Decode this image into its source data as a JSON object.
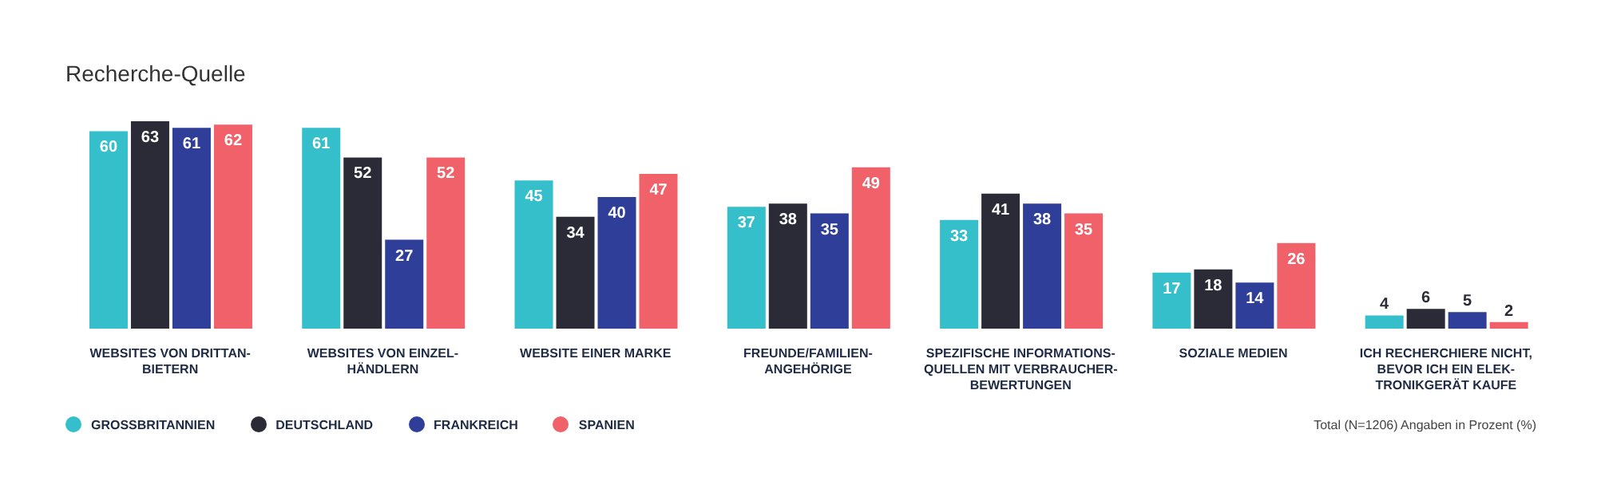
{
  "chart_data": {
    "type": "bar",
    "title": "Recherche-Quelle",
    "categories": [
      "WEBSITES VON DRITTAN-\nBIETERN",
      "WEBSITES VON EINZEL-\nHÄNDLERN",
      "WEBSITE EINER MARKE",
      "FREUNDE/FAMILIEN-\nANGEHÖRIGE",
      "SPEZIFISCHE INFORMATIONS-\nQUELLEN MIT VERBRAUCHER-\nBEWERTUNGEN",
      "SOZIALE MEDIEN",
      "ICH RECHERCHIERE NICHT,\nBEVOR ICH EIN ELEK-\nTRONIKGERÄT KAUFE"
    ],
    "series": [
      {
        "name": "GROSSBRITANNIEN",
        "color": "#35bfca",
        "values": [
          60,
          61,
          45,
          37,
          33,
          17,
          4
        ]
      },
      {
        "name": "DEUTSCHLAND",
        "color": "#2a2b36",
        "values": [
          63,
          52,
          34,
          38,
          41,
          18,
          6
        ]
      },
      {
        "name": "FRANKREICH",
        "color": "#2f3f99",
        "values": [
          61,
          27,
          40,
          35,
          38,
          14,
          5
        ]
      },
      {
        "name": "SPANIEN",
        "color": "#f06169",
        "values": [
          62,
          52,
          47,
          49,
          35,
          26,
          2
        ]
      }
    ],
    "data_labels": true,
    "legend": "bottom left",
    "grid": false,
    "annotations": [
      "Total (N=1206) Angaben in Prozent (%)"
    ]
  }
}
